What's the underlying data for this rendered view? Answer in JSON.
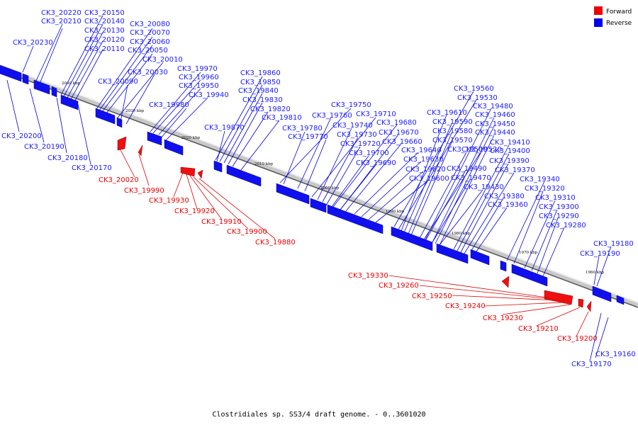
{
  "caption": "Clostridiales sp. SS3/4 draft genome. - 0..3601020",
  "legend": [
    {
      "label": "Forward",
      "color": "#ee0000"
    },
    {
      "label": "Reverse",
      "color": "#0000ee"
    }
  ],
  "scale_ticks": [
    "2040 kbp",
    "2030 kbp",
    "2020 kbp",
    "2010 kbp",
    "2000 kbp",
    "1990 kbp",
    "1980 kbp",
    "1970 kbp",
    "1960 kbp"
  ],
  "reverse_genes": [
    "CK3_20230",
    "CK3_20220",
    "CK3_20210",
    "CK3_20150",
    "CK3_20140",
    "CK3_20130",
    "CK3_20120",
    "CK3_20110",
    "CK3_20080",
    "CK3_20070",
    "CK3_20060",
    "CK3_20050",
    "CK3_20010",
    "CK3_20030",
    "CK3_20090",
    "CK3_19970",
    "CK3_19960",
    "CK3_19950",
    "CK3_19940",
    "CK3_19980",
    "CK3_19860",
    "CK3_19850",
    "CK3_19840",
    "CK3_19830",
    "CK3_19820",
    "CK3_19810",
    "CK3_19870",
    "CK3_19750",
    "CK3_19760",
    "CK3_19710",
    "CK3_19780",
    "CK3_19740",
    "CK3_19770",
    "CK3_19730",
    "CK3_19720",
    "CK3_19700",
    "CK3_19690",
    "CK3_19680",
    "CK3_19670",
    "CK3_19660",
    "CK3_19640",
    "CK3_19630",
    "CK3_19620",
    "CK3_19600",
    "CK3_19560",
    "CK3_19530",
    "CK3_19480",
    "CK3_19610",
    "CK3_19460",
    "CK3_19590",
    "CK3_19450",
    "CK3_19580",
    "CK3_19440",
    "CK3_19570",
    "CK3_19410",
    "CK3_19500",
    "CK3_19520",
    "CK3_19400",
    "CK3_19490",
    "CK3_19390",
    "CK3_19470",
    "CK3_19370",
    "CK3_19430",
    "CK3_19340",
    "CK3_19380",
    "CK3_19320",
    "CK3_19360",
    "CK3_19310",
    "CK3_19300",
    "CK3_19290",
    "CK3_19280",
    "CK3_19180",
    "CK3_19190",
    "CK3_20200",
    "CK3_20190",
    "CK3_20180",
    "CK3_20170",
    "CK3_19160",
    "CK3_19170"
  ],
  "forward_genes": [
    "CK3_20020",
    "CK3_19990",
    "CK3_19930",
    "CK3_19920",
    "CK3_19910",
    "CK3_19900",
    "CK3_19880",
    "CK3_19330",
    "CK3_19260",
    "CK3_19250",
    "CK3_19240",
    "CK3_19230",
    "CK3_19210",
    "CK3_19200"
  ]
}
